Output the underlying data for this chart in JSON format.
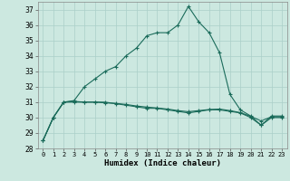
{
  "title": "",
  "xlabel": "Humidex (Indice chaleur)",
  "ylabel": "",
  "bg_color": "#cce8e0",
  "grid_color": "#aacfc8",
  "line_color": "#1a6b5a",
  "xlim": [
    -0.5,
    23.5
  ],
  "ylim": [
    28,
    37.5
  ],
  "yticks": [
    28,
    29,
    30,
    31,
    32,
    33,
    34,
    35,
    36,
    37
  ],
  "xticks": [
    0,
    1,
    2,
    3,
    4,
    5,
    6,
    7,
    8,
    9,
    10,
    11,
    12,
    13,
    14,
    15,
    16,
    17,
    18,
    19,
    20,
    21,
    22,
    23
  ],
  "line1_x": [
    0,
    1,
    2,
    3,
    4,
    5,
    6,
    7,
    8,
    9,
    10,
    11,
    12,
    13,
    14,
    15,
    16,
    17,
    18,
    19,
    20,
    21,
    22,
    23
  ],
  "line1_y": [
    28.5,
    30.0,
    31.0,
    31.1,
    32.0,
    32.5,
    33.0,
    33.3,
    34.0,
    34.5,
    35.3,
    35.5,
    35.5,
    36.0,
    37.2,
    36.2,
    35.5,
    34.2,
    31.5,
    30.5,
    30.1,
    29.5,
    30.1,
    30.1
  ],
  "line2_x": [
    0,
    1,
    2,
    3,
    4,
    5,
    6,
    7,
    8,
    9,
    10,
    11,
    12,
    13,
    14,
    15,
    16,
    17,
    18,
    19,
    20,
    21,
    22,
    23
  ],
  "line2_y": [
    28.5,
    30.0,
    31.0,
    31.0,
    31.0,
    31.0,
    31.0,
    30.9,
    30.8,
    30.7,
    30.6,
    30.6,
    30.5,
    30.4,
    30.3,
    30.4,
    30.5,
    30.5,
    30.4,
    30.3,
    30.0,
    29.5,
    30.0,
    30.0
  ],
  "line3_x": [
    0,
    1,
    2,
    3,
    4,
    5,
    6,
    7,
    8,
    9,
    10,
    11,
    12,
    13,
    14,
    15,
    16,
    17,
    18,
    19,
    20,
    21,
    22,
    23
  ],
  "line3_y": [
    28.5,
    30.0,
    31.0,
    31.05,
    31.0,
    31.0,
    30.95,
    30.92,
    30.85,
    30.75,
    30.68,
    30.62,
    30.55,
    30.45,
    30.38,
    30.45,
    30.52,
    30.55,
    30.45,
    30.32,
    30.08,
    29.78,
    30.05,
    30.05
  ]
}
